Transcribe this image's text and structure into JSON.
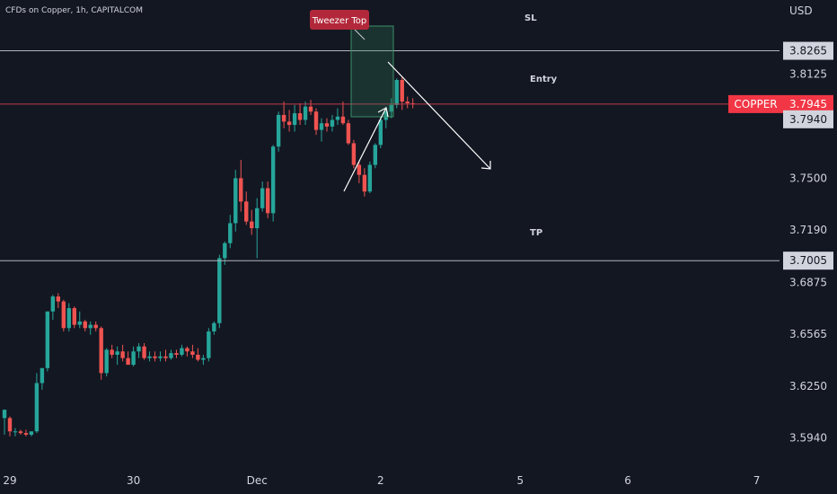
{
  "header": {
    "title": "CFDs on Copper, 1h, CAPITALCOM",
    "currency": "USD"
  },
  "colors": {
    "background": "#131722",
    "up": "#26a69a",
    "down": "#ef5350",
    "text": "#d1d4dc",
    "level_line": "#b2b5be",
    "symbol_tag": "#f23645",
    "pattern_box": "#2e7d5a",
    "callout": "#b2283a"
  },
  "chart_data": {
    "type": "candlestick",
    "title": "",
    "ylim": [
      3.5755,
      3.857
    ],
    "y_ticks": [
      {
        "value": 3.8125,
        "label": "3.8125"
      },
      {
        "value": 3.75,
        "label": "3.7500"
      },
      {
        "value": 3.719,
        "label": "3.7190"
      },
      {
        "value": 3.6875,
        "label": "3.6875"
      },
      {
        "value": 3.6565,
        "label": "3.6565"
      },
      {
        "value": 3.625,
        "label": "3.6250"
      },
      {
        "value": 3.594,
        "label": "3.5940"
      }
    ],
    "x_ticks": [
      {
        "label": "29",
        "index": 1
      },
      {
        "label": "30",
        "index": 24
      },
      {
        "label": "Dec",
        "index": 47
      },
      {
        "label": "2",
        "index": 70
      },
      {
        "label": "5",
        "index": 96
      },
      {
        "label": "7",
        "index": 140
      },
      {
        "label": "6",
        "index": 116
      }
    ],
    "candles": [
      [
        3.606,
        3.611,
        3.596,
        3.611
      ],
      [
        3.606,
        3.607,
        3.595,
        3.598
      ],
      [
        3.598,
        3.6,
        3.595,
        3.598
      ],
      [
        3.598,
        3.599,
        3.596,
        3.597
      ],
      [
        3.597,
        3.599,
        3.595,
        3.596
      ],
      [
        3.596,
        3.598,
        3.595,
        3.598
      ],
      [
        3.598,
        3.633,
        3.597,
        3.627
      ],
      [
        3.627,
        3.636,
        3.623,
        3.636
      ],
      [
        3.636,
        3.67,
        3.634,
        3.67
      ],
      [
        3.67,
        3.68,
        3.665,
        3.679
      ],
      [
        3.679,
        3.681,
        3.672,
        3.676
      ],
      [
        3.676,
        3.677,
        3.658,
        3.66
      ],
      [
        3.66,
        3.675,
        3.658,
        3.672
      ],
      [
        3.672,
        3.673,
        3.66,
        3.662
      ],
      [
        3.662,
        3.67,
        3.66,
        3.664
      ],
      [
        3.664,
        3.665,
        3.658,
        3.66
      ],
      [
        3.66,
        3.664,
        3.656,
        3.662
      ],
      [
        3.662,
        3.664,
        3.658,
        3.66
      ],
      [
        3.66,
        3.661,
        3.629,
        3.633
      ],
      [
        3.633,
        3.648,
        3.631,
        3.647
      ],
      [
        3.647,
        3.65,
        3.642,
        3.644
      ],
      [
        3.644,
        3.649,
        3.638,
        3.646
      ],
      [
        3.646,
        3.65,
        3.64,
        3.642
      ],
      [
        3.642,
        3.646,
        3.638,
        3.638
      ],
      [
        3.638,
        3.649,
        3.637,
        3.646
      ],
      [
        3.646,
        3.651,
        3.642,
        3.649
      ],
      [
        3.649,
        3.651,
        3.641,
        3.642
      ],
      [
        3.642,
        3.646,
        3.64,
        3.643
      ],
      [
        3.643,
        3.646,
        3.64,
        3.642
      ],
      [
        3.642,
        3.646,
        3.64,
        3.643
      ],
      [
        3.643,
        3.647,
        3.64,
        3.642
      ],
      [
        3.642,
        3.647,
        3.641,
        3.645
      ],
      [
        3.645,
        3.647,
        3.642,
        3.644
      ],
      [
        3.644,
        3.65,
        3.643,
        3.648
      ],
      [
        3.648,
        3.649,
        3.643,
        3.646
      ],
      [
        3.646,
        3.65,
        3.642,
        3.644
      ],
      [
        3.644,
        3.648,
        3.64,
        3.641
      ],
      [
        3.641,
        3.644,
        3.638,
        3.642
      ],
      [
        3.642,
        3.66,
        3.64,
        3.658
      ],
      [
        3.658,
        3.664,
        3.656,
        3.663
      ],
      [
        3.663,
        3.704,
        3.66,
        3.702
      ],
      [
        3.702,
        3.712,
        3.698,
        3.711
      ],
      [
        3.711,
        3.728,
        3.708,
        3.723
      ],
      [
        3.723,
        3.755,
        3.718,
        3.75
      ],
      [
        3.75,
        3.761,
        3.73,
        3.736
      ],
      [
        3.736,
        3.742,
        3.722,
        3.724
      ],
      [
        3.724,
        3.731,
        3.716,
        3.72
      ],
      [
        3.72,
        3.738,
        3.702,
        3.732
      ],
      [
        3.732,
        3.748,
        3.73,
        3.744
      ],
      [
        3.744,
        3.748,
        3.726,
        3.729
      ],
      [
        3.729,
        3.77,
        3.724,
        3.769
      ],
      [
        3.769,
        3.79,
        3.766,
        3.788
      ],
      [
        3.788,
        3.796,
        3.78,
        3.784
      ],
      [
        3.784,
        3.791,
        3.778,
        3.782
      ],
      [
        3.782,
        3.794,
        3.778,
        3.789
      ],
      [
        3.789,
        3.795,
        3.782,
        3.785
      ],
      [
        3.785,
        3.796,
        3.782,
        3.793
      ],
      [
        3.793,
        3.797,
        3.788,
        3.79
      ],
      [
        3.79,
        3.792,
        3.776,
        3.779
      ],
      [
        3.779,
        3.786,
        3.772,
        3.783
      ],
      [
        3.783,
        3.786,
        3.778,
        3.781
      ],
      [
        3.781,
        3.788,
        3.778,
        3.785
      ],
      [
        3.785,
        3.792,
        3.782,
        3.787
      ],
      [
        3.787,
        3.796,
        3.782,
        3.783
      ],
      [
        3.783,
        3.785,
        3.77,
        3.771
      ],
      [
        3.771,
        3.773,
        3.756,
        3.758
      ],
      [
        3.758,
        3.76,
        3.747,
        3.752
      ],
      [
        3.752,
        3.756,
        3.739,
        3.742
      ],
      [
        3.742,
        3.76,
        3.741,
        3.758
      ],
      [
        3.758,
        3.771,
        3.756,
        3.77
      ],
      [
        3.77,
        3.787,
        3.768,
        3.785
      ],
      [
        3.785,
        3.793,
        3.78,
        3.79
      ],
      [
        3.79,
        3.798,
        3.786,
        3.794
      ],
      [
        3.794,
        3.81,
        3.792,
        3.809
      ],
      [
        3.809,
        3.811,
        3.791,
        3.796
      ],
      [
        3.796,
        3.799,
        3.792,
        3.795
      ],
      [
        3.795,
        3.798,
        3.792,
        3.7945
      ]
    ],
    "levels": [
      {
        "name": "SL",
        "value": 3.8265,
        "label": "3.8265"
      },
      {
        "name": "Entry",
        "value": 3.7945,
        "label": "3.7945",
        "tag": "COPPER"
      },
      {
        "name": "TP",
        "value": 3.7005,
        "label": "3.7005"
      }
    ],
    "extra_labels": [
      {
        "value": 3.794,
        "label": "3.7940"
      }
    ],
    "annotations": [
      {
        "text": "Tweezer Top"
      }
    ]
  }
}
